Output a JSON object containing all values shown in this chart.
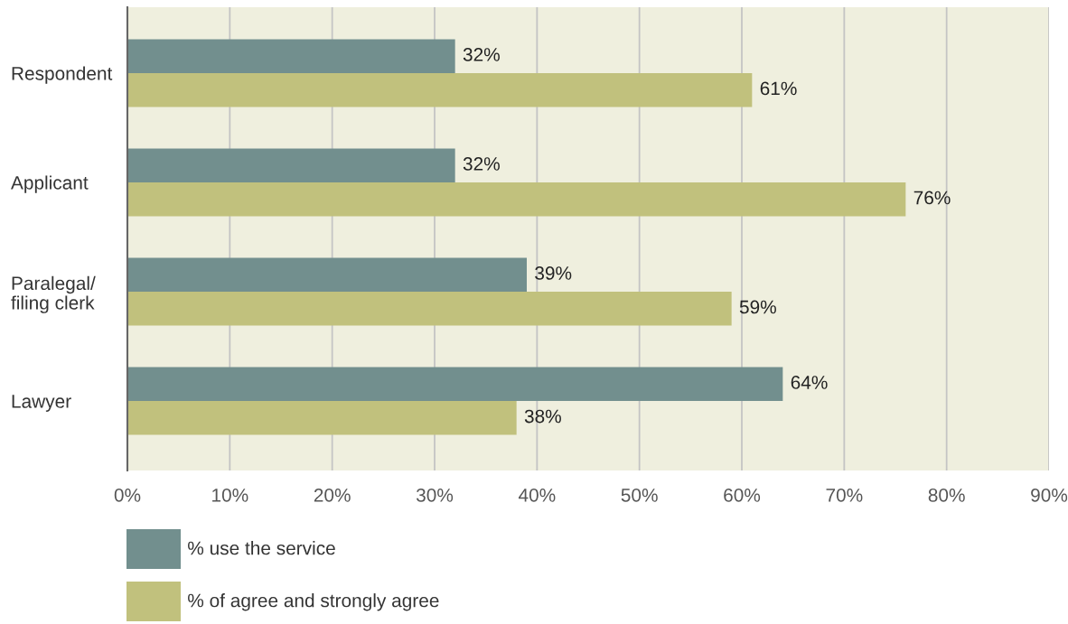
{
  "chart_data": {
    "type": "bar",
    "orientation": "horizontal",
    "categories": [
      "Respondent",
      "Applicant",
      "Paralegal/\nfiling clerk",
      "Lawyer"
    ],
    "series": [
      {
        "name": "% use the service",
        "color": "#728f8e",
        "values": [
          32,
          32,
          39,
          64
        ],
        "value_labels": [
          "32%",
          "32%",
          "39%",
          "64%"
        ]
      },
      {
        "name": "% of agree and strongly agree",
        "color": "#c1c17d",
        "values": [
          61,
          76,
          59,
          38
        ],
        "value_labels": [
          "61%",
          "76%",
          "59%",
          "38%"
        ]
      }
    ],
    "xlim": [
      0,
      90
    ],
    "xticks": [
      {
        "value": 0,
        "label": "0%"
      },
      {
        "value": 10,
        "label": "10%"
      },
      {
        "value": 20,
        "label": "20%"
      },
      {
        "value": 30,
        "label": "30%"
      },
      {
        "value": 40,
        "label": "40%"
      },
      {
        "value": 50,
        "label": "50%"
      },
      {
        "value": 60,
        "label": "60%"
      },
      {
        "value": 70,
        "label": "70%"
      },
      {
        "value": 80,
        "label": "80%"
      },
      {
        "value": 90,
        "label": "90%"
      }
    ],
    "grid": "x",
    "legend": "bottom"
  }
}
